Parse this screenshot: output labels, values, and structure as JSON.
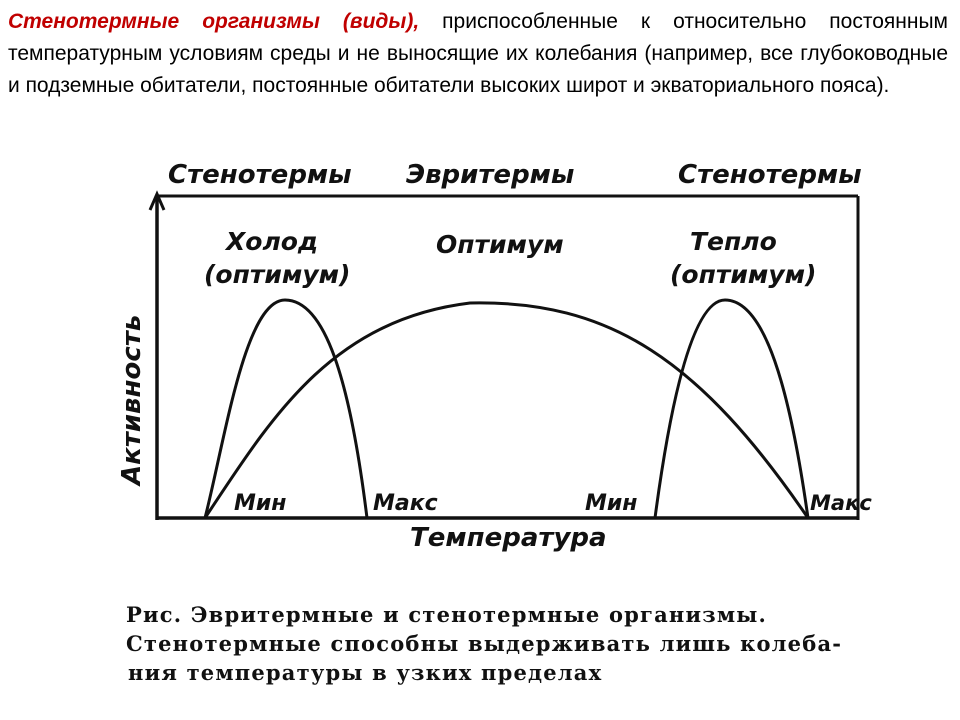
{
  "intro": {
    "term": "Стенотермные организмы",
    "term_tail": "(виды),",
    "body": " приспособленные к относительно постоянным температурным условиям среды и не выносящие их колебания (например, все глубоководные и подземные обитатели, постоянные обитатели высоких широт и экваториального пояса)."
  },
  "diagram": {
    "top_labels": {
      "left": "Стенотермы",
      "center": "Эвритермы",
      "right": "Стенотермы"
    },
    "curve_labels": {
      "cold_line1": "Холод",
      "cold_line2": "(оптимум)",
      "optimum": "Оптимум",
      "warm_line1": "Тепло",
      "warm_line2": "(оптимум)"
    },
    "y_axis_label": "Активность",
    "x_axis_label": "Температура",
    "x_ticks": [
      "Мин",
      "Макс",
      "Мин",
      "Макс"
    ],
    "colors": {
      "ink": "#111111",
      "accent": "#c00000"
    }
  },
  "caption": {
    "line1": "Рис.   Эвритермные и стенотермные организмы.",
    "line2": "Стенотермные способны выдерживать лишь колеба-",
    "line3": "ния температуры в узких пределах"
  }
}
